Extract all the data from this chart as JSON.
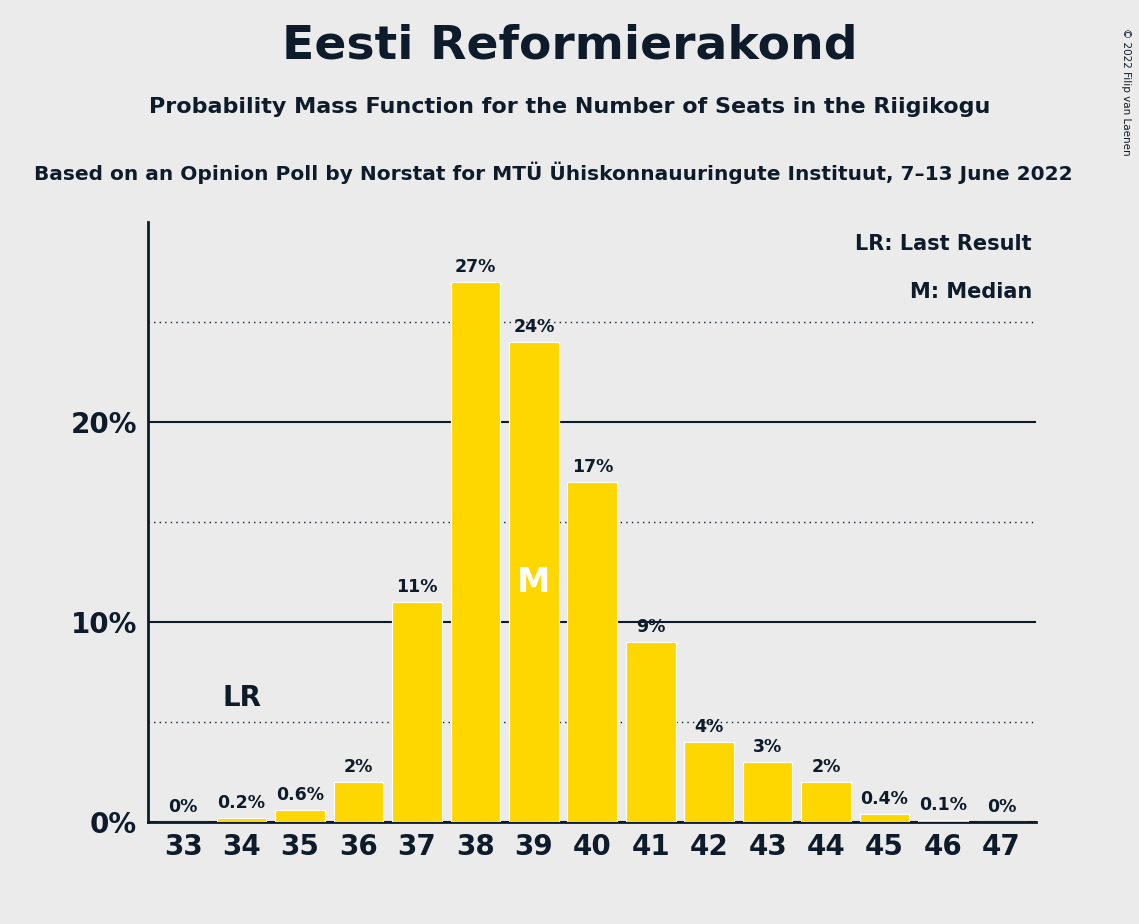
{
  "title": "Eesti Reformierakond",
  "subtitle": "Probability Mass Function for the Number of Seats in the Riigikogu",
  "subsubtitle": "Based on an Opinion Poll by Norstat for MTÜ Ühiskonnauuringute Instituut, 7–13 June 2022",
  "copyright": "© 2022 Filip van Laenen",
  "categories": [
    33,
    34,
    35,
    36,
    37,
    38,
    39,
    40,
    41,
    42,
    43,
    44,
    45,
    46,
    47
  ],
  "values": [
    0.0,
    0.2,
    0.6,
    2.0,
    11.0,
    27.0,
    24.0,
    17.0,
    9.0,
    4.0,
    3.0,
    2.0,
    0.4,
    0.1,
    0.0
  ],
  "labels": [
    "0%",
    "0.2%",
    "0.6%",
    "2%",
    "11%",
    "27%",
    "24%",
    "17%",
    "9%",
    "4%",
    "3%",
    "2%",
    "0.4%",
    "0.1%",
    "0%"
  ],
  "bar_color": "#FFD700",
  "background_color": "#EBEBEB",
  "text_color": "#0d1b2a",
  "lr_seat": 34,
  "median_seat": 39,
  "yticks": [
    0,
    10,
    20
  ],
  "ytick_labels": [
    "0%",
    "10%",
    "20%"
  ],
  "dotted_lines": [
    5,
    15,
    25
  ],
  "ylim": [
    0,
    30
  ],
  "legend_lr": "LR: Last Result",
  "legend_m": "M: Median"
}
